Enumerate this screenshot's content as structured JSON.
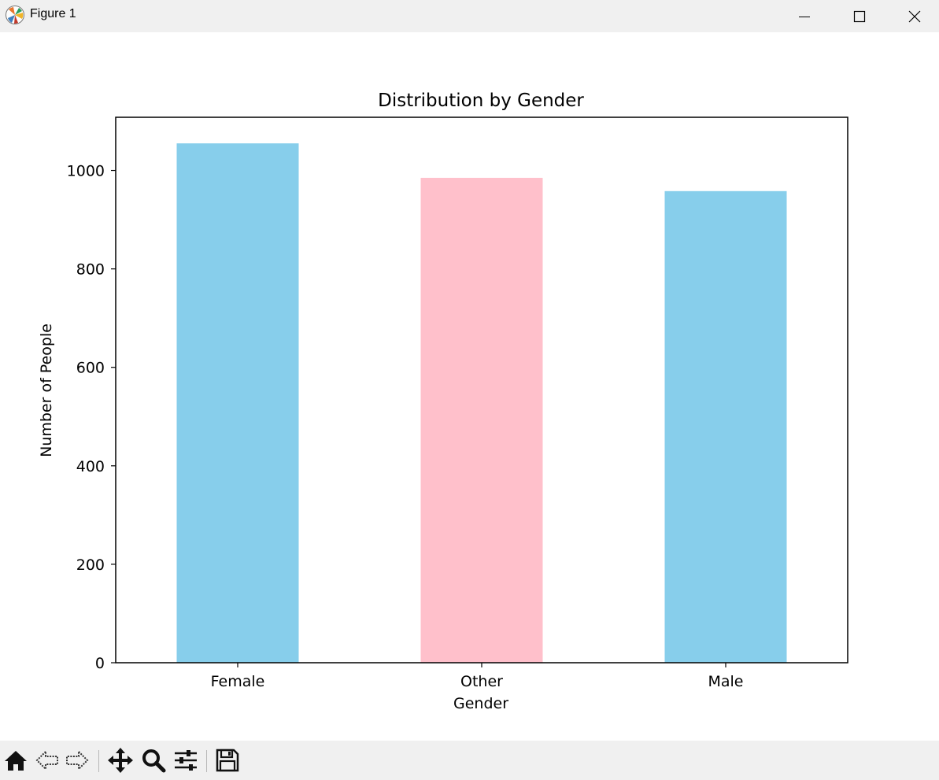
{
  "window": {
    "title": "Figure 1",
    "icons": {
      "app": "matplotlib-icon",
      "minimize": "minimize-icon",
      "maximize": "maximize-icon",
      "close": "close-icon"
    }
  },
  "toolbar": {
    "buttons": [
      {
        "name": "home",
        "icon": "home-icon"
      },
      {
        "name": "back",
        "icon": "back-arrow-icon"
      },
      {
        "name": "forward",
        "icon": "forward-arrow-icon"
      },
      {
        "name": "pan",
        "icon": "move-icon"
      },
      {
        "name": "zoom",
        "icon": "magnifier-icon"
      },
      {
        "name": "configure-subplots",
        "icon": "sliders-icon"
      },
      {
        "name": "save",
        "icon": "floppy-disk-icon"
      }
    ]
  },
  "chart_data": {
    "type": "bar",
    "title": "Distribution by Gender",
    "xlabel": "Gender",
    "ylabel": "Number of People",
    "categories": [
      "Female",
      "Other",
      "Male"
    ],
    "values": [
      1055,
      985,
      958
    ],
    "colors": [
      "#87ceeb",
      "#ffc0cb",
      "#87ceeb"
    ],
    "ylim": [
      0,
      1108
    ],
    "yticks": [
      0,
      200,
      400,
      600,
      800,
      1000
    ],
    "grid": false,
    "legend": "none"
  }
}
